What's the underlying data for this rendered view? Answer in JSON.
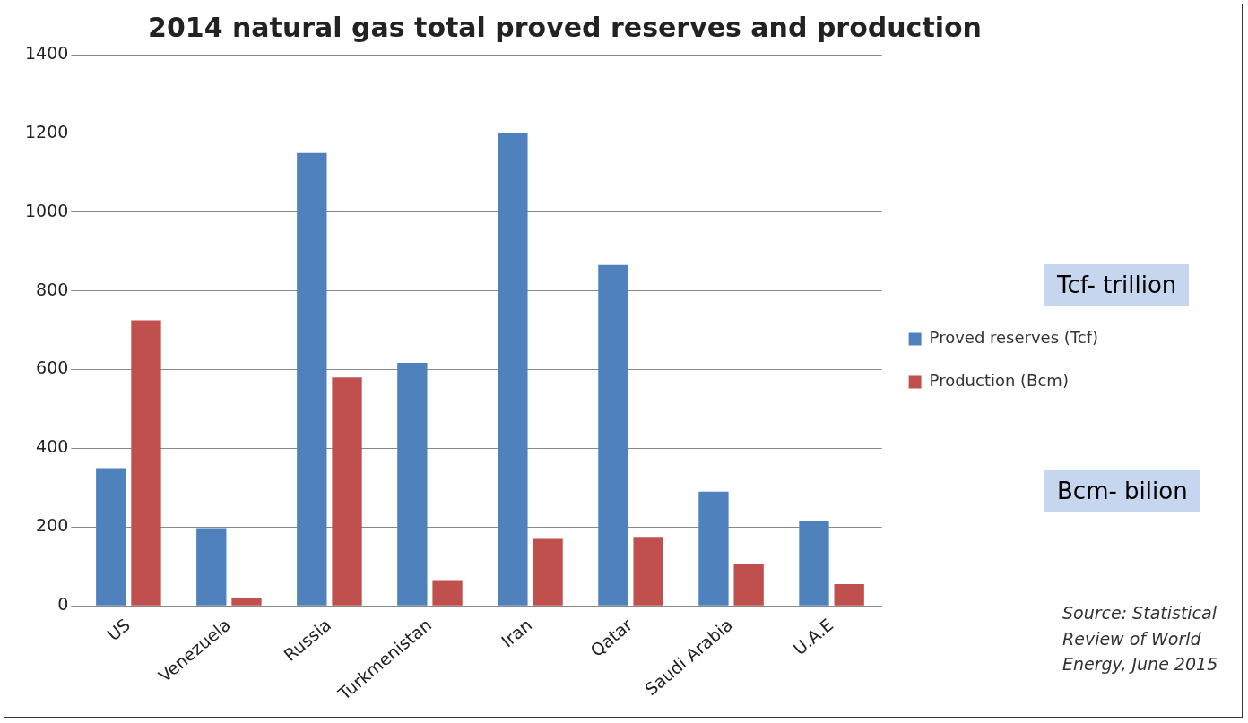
{
  "chart_data": {
    "type": "bar",
    "title": "2014 natural gas total proved reserves and production",
    "categories": [
      "US",
      "Venezuela",
      "Russia",
      "Turkmenistan",
      "Iran",
      "Qatar",
      "Saudi Arabia",
      "U.A.E"
    ],
    "series": [
      {
        "name": "Proved reserves (Tcf)",
        "color": "#4f81bd",
        "values": [
          350,
          197,
          1150,
          617,
          1200,
          866,
          290,
          215
        ]
      },
      {
        "name": "Production (Bcm)",
        "color": "#c0504d",
        "values": [
          725,
          20,
          580,
          65,
          170,
          175,
          105,
          55
        ]
      }
    ],
    "ylim": [
      0,
      1400
    ],
    "yticks": [
      0,
      200,
      400,
      600,
      800,
      1000,
      1200,
      1400
    ],
    "grid": "y",
    "legend": "right",
    "annotations": [
      "Tcf- trillion",
      "Bcm- bilion",
      "Source: Statistical Review of World Energy, June 2015"
    ]
  }
}
